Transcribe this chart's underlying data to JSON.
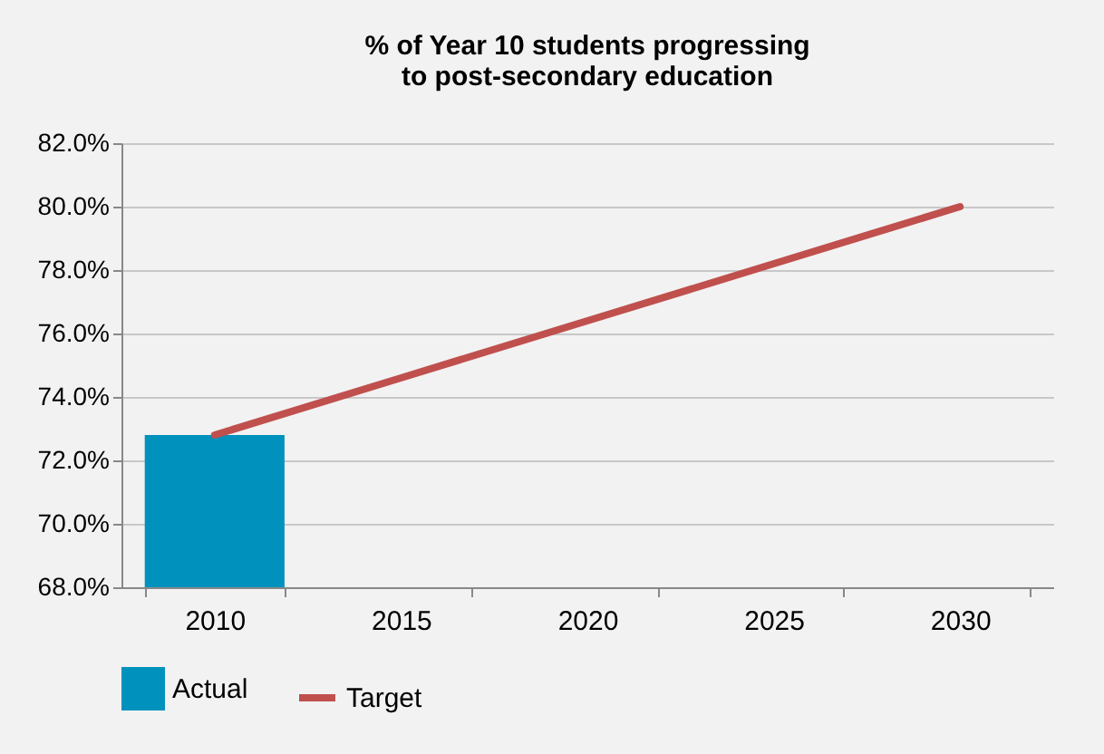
{
  "chart_data": {
    "type": "bar",
    "title": "% of Year 10 students progressing to post-secondary education",
    "categories": [
      "2010",
      "2015",
      "2020",
      "2025",
      "2030"
    ],
    "series": [
      {
        "name": "Actual",
        "color": "#0092bc",
        "values": [
          72.8,
          null,
          null,
          null,
          null
        ]
      },
      {
        "name": "Target",
        "type": "line",
        "color": "#c0504d",
        "values": [
          72.8,
          74.6,
          76.4,
          78.2,
          80.0
        ]
      }
    ],
    "ylim": [
      68,
      82
    ],
    "yticks": [
      {
        "value": 68,
        "label": "68.0%"
      },
      {
        "value": 70,
        "label": "70.0%"
      },
      {
        "value": 72,
        "label": "72.0%"
      },
      {
        "value": 74,
        "label": "74.0%"
      },
      {
        "value": 76,
        "label": "76.0%"
      },
      {
        "value": 78,
        "label": "78.0%"
      },
      {
        "value": 80,
        "label": "80.0%"
      },
      {
        "value": 82,
        "label": "82.0%"
      }
    ],
    "grid": "y",
    "legend": "bottom"
  }
}
